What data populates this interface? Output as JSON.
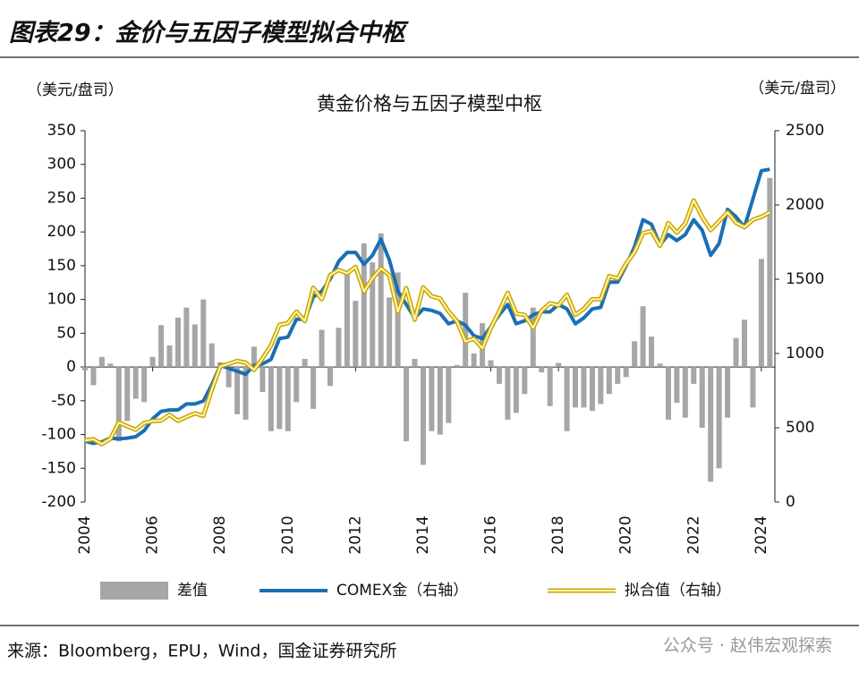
{
  "header": {
    "title": "图表29：金价与五因子模型拟合中枢"
  },
  "chart_data": {
    "type": "combo",
    "title": "黄金价格与五因子模型中枢",
    "y_label": "（美元/盘司）",
    "y2_label": "（美元/盘司）",
    "x": [
      2004,
      2004.25,
      2004.5,
      2004.75,
      2005,
      2005.25,
      2005.5,
      2005.75,
      2006,
      2006.25,
      2006.5,
      2006.75,
      2007,
      2007.25,
      2007.5,
      2007.75,
      2008,
      2008.25,
      2008.5,
      2008.75,
      2009,
      2009.25,
      2009.5,
      2009.75,
      2010,
      2010.25,
      2010.5,
      2010.75,
      2011,
      2011.25,
      2011.5,
      2011.75,
      2012,
      2012.25,
      2012.5,
      2012.75,
      2013,
      2013.25,
      2013.5,
      2013.75,
      2014,
      2014.25,
      2014.5,
      2014.75,
      2015,
      2015.25,
      2015.5,
      2015.75,
      2016,
      2016.25,
      2016.5,
      2016.75,
      2017,
      2017.25,
      2017.5,
      2017.75,
      2018,
      2018.25,
      2018.5,
      2018.75,
      2019,
      2019.25,
      2019.5,
      2019.75,
      2020,
      2020.25,
      2020.5,
      2020.75,
      2021,
      2021.25,
      2021.5,
      2021.75,
      2022,
      2022.25,
      2022.5,
      2022.75,
      2023,
      2023.25,
      2023.5,
      2023.75,
      2024,
      2024.25
    ],
    "xlim": [
      2004,
      2024.4
    ],
    "xticks": [
      2004,
      2006,
      2008,
      2010,
      2012,
      2014,
      2016,
      2018,
      2020,
      2022,
      2024
    ],
    "ylim": [
      -200,
      350
    ],
    "yticks": [
      -200,
      -150,
      -100,
      -50,
      0,
      50,
      100,
      150,
      200,
      250,
      300,
      350
    ],
    "y2lim": [
      0,
      2500
    ],
    "y2ticks": [
      0,
      500,
      1000,
      1500,
      2000,
      2500
    ],
    "series": [
      {
        "name": "差值",
        "type": "bar",
        "axis": "y",
        "color": "#a6a6a6",
        "values": [
          -5,
          -27,
          15,
          5,
          -110,
          -80,
          -47,
          -52,
          15,
          62,
          32,
          73,
          88,
          63,
          100,
          35,
          7,
          -30,
          -70,
          -78,
          30,
          -37,
          -95,
          -92,
          -95,
          -52,
          12,
          -62,
          55,
          -28,
          58,
          140,
          98,
          183,
          155,
          198,
          103,
          140,
          -110,
          12,
          -145,
          -95,
          -100,
          -83,
          3,
          110,
          20,
          65,
          10,
          -25,
          -78,
          -68,
          -40,
          88,
          -8,
          -58,
          6,
          -95,
          -60,
          -60,
          -65,
          -55,
          -40,
          -25,
          -15,
          38,
          90,
          45,
          5,
          -78,
          -53,
          -75,
          -25,
          -90,
          -170,
          -150,
          -75,
          43,
          70,
          -60,
          160,
          280
        ]
      },
      {
        "name": "COMEX金（右轴）",
        "type": "line",
        "axis": "y2",
        "color": "#1a6fb5",
        "values": [
          410,
          395,
          405,
          430,
          425,
          430,
          440,
          480,
          560,
          610,
          620,
          620,
          660,
          660,
          680,
          790,
          920,
          900,
          880,
          860,
          920,
          930,
          960,
          1100,
          1110,
          1230,
          1230,
          1380,
          1420,
          1500,
          1620,
          1680,
          1680,
          1600,
          1660,
          1770,
          1630,
          1420,
          1330,
          1240,
          1300,
          1290,
          1270,
          1200,
          1220,
          1190,
          1120,
          1100,
          1180,
          1260,
          1330,
          1200,
          1220,
          1260,
          1280,
          1280,
          1330,
          1300,
          1200,
          1240,
          1300,
          1310,
          1480,
          1480,
          1590,
          1720,
          1900,
          1870,
          1730,
          1800,
          1760,
          1800,
          1900,
          1830,
          1660,
          1740,
          1970,
          1920,
          1850,
          2040,
          2230,
          2240
        ]
      },
      {
        "name": "拟合值（右轴）",
        "type": "line",
        "axis": "y2",
        "color": "#f5d000",
        "values": [
          415,
          422,
          390,
          425,
          535,
          510,
          487,
          532,
          545,
          548,
          588,
          547,
          572,
          597,
          580,
          755,
          913,
          930,
          950,
          938,
          890,
          967,
          1055,
          1192,
          1205,
          1282,
          1218,
          1442,
          1365,
          1528,
          1562,
          1540,
          1582,
          1417,
          1505,
          1572,
          1527,
          1280,
          1440,
          1228,
          1445,
          1385,
          1370,
          1283,
          1217,
          1080,
          1100,
          1035,
          1170,
          1285,
          1408,
          1268,
          1260,
          1172,
          1288,
          1338,
          1324,
          1395,
          1260,
          1300,
          1365,
          1365,
          1520,
          1505,
          1605,
          1682,
          1810,
          1825,
          1725,
          1878,
          1813,
          1875,
          2030,
          1920,
          1830,
          1890,
          1950,
          1880,
          1850,
          1900,
          1920,
          1950
        ]
      }
    ]
  },
  "footer": {
    "source": "来源：Bloomberg，EPU，Wind，国金证券研究所",
    "watermark": "公众号 · 赵伟宏观探索"
  }
}
